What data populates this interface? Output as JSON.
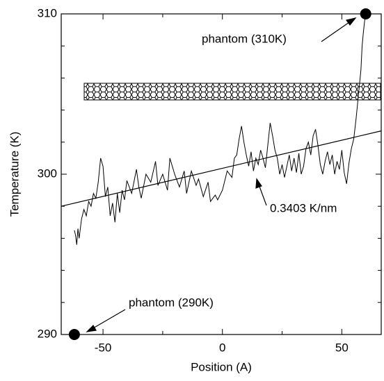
{
  "chart_data": {
    "type": "line",
    "x_label": "Position (A)",
    "y_label": "Temperature (K)",
    "xlim": [
      -67.5,
      66.5
    ],
    "ylim": [
      290,
      310
    ],
    "xticks": [
      -50,
      0,
      50
    ],
    "yticks": [
      290,
      300,
      310
    ],
    "xminorticks": [
      -25,
      25
    ],
    "yminorticks": [
      292,
      294,
      296,
      298,
      302,
      304,
      306,
      308
    ],
    "series": [
      {
        "color": "#000000",
        "width": 1,
        "x": [
          -62,
          -61.5,
          -61,
          -60.5,
          -60,
          -59,
          -58,
          -57,
          -56,
          -55,
          -54,
          -53,
          -52,
          -51,
          -50,
          -49,
          -48,
          -47,
          -46,
          -45,
          -44,
          -43,
          -42,
          -41,
          -40,
          -38,
          -36,
          -35,
          -34,
          -32,
          -30,
          -28,
          -27,
          -25,
          -23,
          -22,
          -20,
          -18,
          -16,
          -15,
          -13,
          -11,
          -10,
          -8,
          -6,
          -5,
          -3,
          -2,
          0,
          1,
          2,
          4,
          5,
          6,
          7,
          8,
          9,
          10,
          11,
          12,
          13,
          14,
          15,
          16,
          17,
          18,
          19,
          20,
          21,
          22,
          23,
          24,
          25,
          26,
          27,
          28,
          29,
          30,
          31,
          32,
          33,
          34,
          35,
          36,
          37,
          38,
          39,
          40,
          41,
          42,
          43,
          44,
          45,
          46,
          47,
          48,
          49,
          50,
          51,
          52,
          53,
          54,
          55,
          56,
          57,
          58,
          58.5,
          59,
          59.5,
          60
        ],
        "values": [
          296.5,
          296.2,
          295.6,
          296.6,
          296.0,
          297.2,
          297.8,
          297.4,
          298.3,
          298.0,
          298.8,
          298.5,
          299.5,
          301.0,
          300.5,
          298.6,
          299.2,
          297.4,
          298.2,
          297.0,
          298.8,
          297.6,
          299.0,
          298.4,
          299.6,
          298.8,
          300.3,
          299.2,
          298.5,
          300.0,
          299.5,
          300.8,
          299.3,
          300.0,
          299.0,
          301.0,
          300.0,
          299.2,
          300.2,
          298.8,
          300.2,
          299.3,
          299.7,
          298.6,
          299.5,
          298.3,
          298.7,
          298.4,
          299.0,
          299.6,
          300.2,
          299.8,
          301.0,
          301.2,
          302.2,
          303.0,
          302.0,
          301.2,
          300.5,
          301.4,
          300.2,
          301.0,
          300.6,
          301.5,
          301.0,
          300.4,
          301.8,
          303.2,
          302.4,
          301.5,
          301.0,
          300.0,
          300.6,
          299.8,
          300.5,
          301.2,
          300.2,
          301.0,
          300.1,
          301.3,
          300.0,
          300.5,
          301.6,
          302.0,
          301.2,
          302.4,
          302.8,
          301.8,
          300.6,
          300.0,
          300.8,
          301.4,
          300.6,
          301.2,
          300.0,
          300.8,
          300.3,
          301.5,
          300.1,
          299.4,
          300.7,
          301.6,
          302.2,
          303.5,
          305.0,
          306.5,
          308.0,
          308.8,
          309.5,
          310.0
        ]
      },
      {
        "color": "#000000",
        "width": 1.2,
        "x": [
          -67.5,
          66.5
        ],
        "values": [
          298.0,
          302.7
        ]
      }
    ],
    "points": {
      "color": "#000000",
      "x": [
        -62,
        60
      ],
      "values": [
        290,
        310
      ]
    },
    "annotations": [
      "phantom (310K)",
      "phantom (290K)",
      "0.3403 K/nm"
    ]
  }
}
